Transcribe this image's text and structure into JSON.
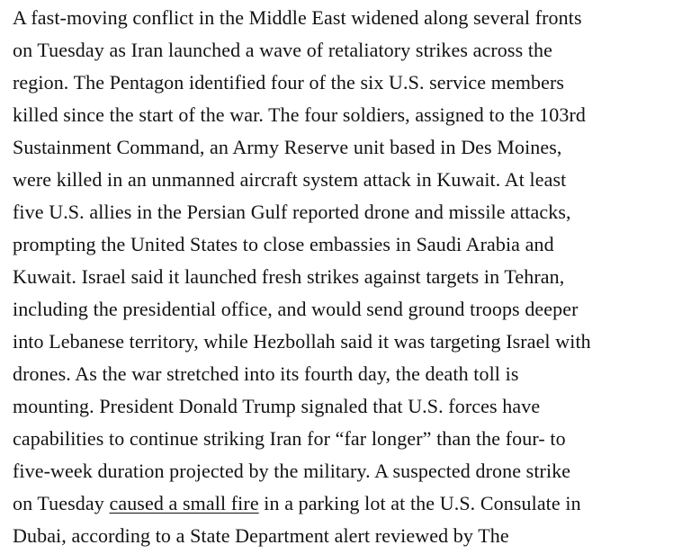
{
  "page": {
    "background_color": "#ffffff",
    "text_color": "#121212"
  },
  "article": {
    "lines": [
      "A fast-moving conflict in the Middle East widened along several fronts",
      "on Tuesday as Iran launched a wave of retaliatory strikes across the",
      "region. The Pentagon identified four of the six U.S. service members",
      "killed since the start of the war. The four soldiers, assigned to the 103rd",
      "Sustainment Command, an Army Reserve unit based in Des Moines,",
      "were killed in an unmanned aircraft system attack in Kuwait. At least",
      "five U.S. allies in the Persian Gulf reported drone and missile attacks,",
      "prompting the United States to close embassies in Saudi Arabia and",
      "Kuwait. Israel said it launched fresh strikes against targets in Tehran,",
      "including the presidential office, and would send ground troops deeper",
      "into Lebanese territory, while Hezbollah said it was targeting Israel with",
      "drones. As the war stretched into its fourth day, the death toll is",
      "mounting. President Donald Trump signaled that U.S. forces have",
      "capabilities to continue striking Iran for “far longer” than the four- to",
      "five-week duration projected by the military. A suspected drone strike"
    ],
    "link_line": {
      "before": "on Tuesday ",
      "link_text": "caused a small fire",
      "after": " in a parking lot at the U.S. Consulate in"
    },
    "last_line": "Dubai, according to a State Department alert reviewed by The"
  }
}
